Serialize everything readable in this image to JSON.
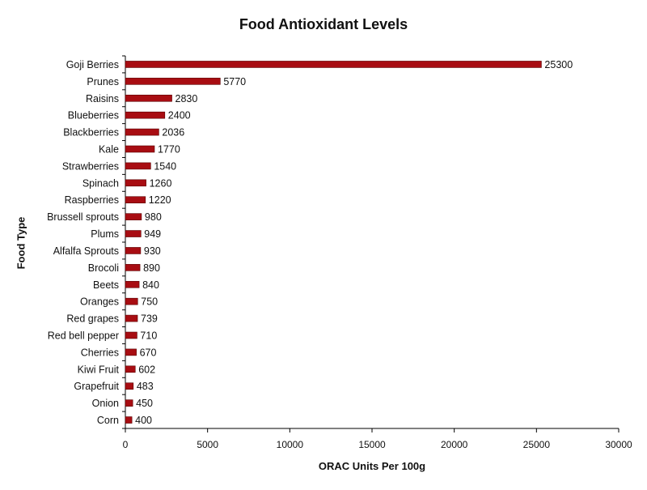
{
  "chart_data": {
    "type": "bar",
    "orientation": "horizontal",
    "title": "Food Antioxidant Levels",
    "xlabel": "ORAC Units Per 100g",
    "ylabel": "Food Type",
    "xlim": [
      0,
      30000
    ],
    "xticks": [
      0,
      5000,
      10000,
      15000,
      20000,
      25000,
      30000
    ],
    "grid": false,
    "bar_color": "#a80d12",
    "categories": [
      "Goji Berries",
      "Prunes",
      "Raisins",
      "Blueberries",
      "Blackberries",
      "Kale",
      "Strawberries",
      "Spinach",
      "Raspberries",
      "Brussell sprouts",
      "Plums",
      "Alfalfa Sprouts",
      "Brocoli",
      "Beets",
      "Oranges",
      "Red grapes",
      "Red bell pepper",
      "Cherries",
      "Kiwi Fruit",
      "Grapefruit",
      "Onion",
      "Corn"
    ],
    "values": [
      25300,
      5770,
      2830,
      2400,
      2036,
      1770,
      1540,
      1260,
      1220,
      980,
      949,
      930,
      890,
      840,
      750,
      739,
      710,
      670,
      602,
      483,
      450,
      400
    ]
  }
}
